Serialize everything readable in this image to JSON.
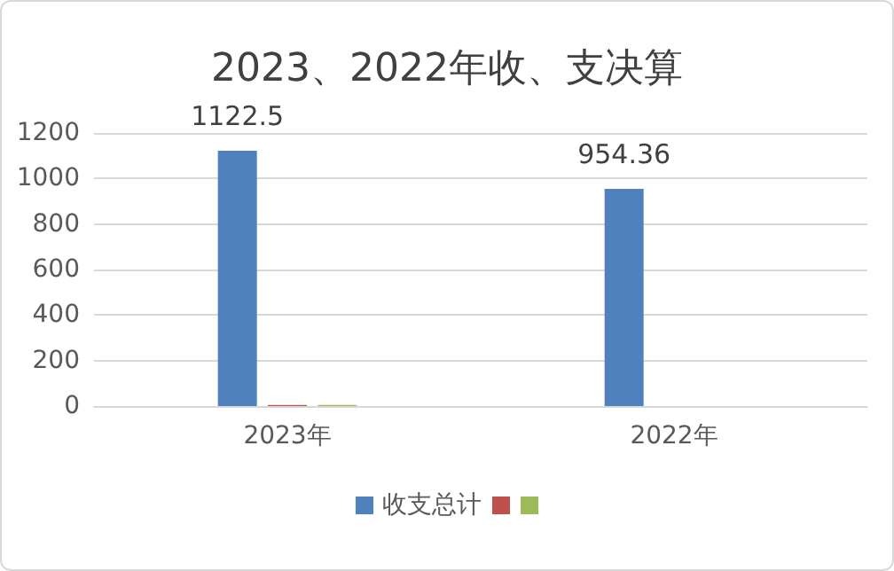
{
  "chart_data": {
    "type": "bar",
    "title": "2023、2022年收、支决算",
    "categories": [
      "2023年",
      "2022年"
    ],
    "series": [
      {
        "name": "收支总计",
        "color": "#4f81bd",
        "values": [
          1122.5,
          954.36
        ],
        "value_labels": [
          "1122.5",
          "954.36"
        ]
      },
      {
        "color": "#c0504d",
        "values": [
          5,
          0
        ]
      },
      {
        "color": "#9bbb59",
        "values": [
          5,
          0
        ]
      }
    ],
    "ylim": [
      0,
      1200
    ],
    "yticks": [
      0,
      200,
      400,
      600,
      800,
      1000,
      1200
    ],
    "grid": "y",
    "legend": "bottom"
  }
}
